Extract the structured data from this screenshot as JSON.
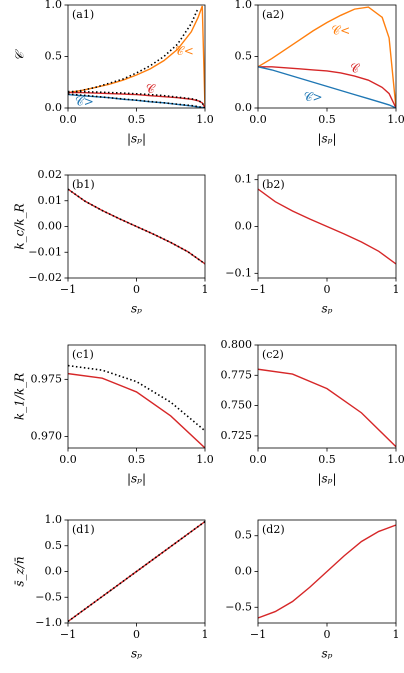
{
  "chart_data": [
    {
      "type": "line",
      "panel": "(a1)",
      "ylabel": "𝒞",
      "xlabel": "|sₚ|",
      "x": [
        0,
        0.1,
        0.2,
        0.3,
        0.4,
        0.5,
        0.6,
        0.7,
        0.8,
        0.9,
        0.95,
        0.98,
        1
      ],
      "xlim": [
        0,
        1
      ],
      "xticks": [
        {
          "value": 0,
          "label": "0.0"
        },
        {
          "value": 0.5,
          "label": "0.5"
        },
        {
          "value": 1,
          "label": "1.0"
        }
      ],
      "ylim": [
        0,
        1
      ],
      "yticks": [
        {
          "value": 0,
          "label": "0.0"
        },
        {
          "value": 0.5,
          "label": "0.5"
        },
        {
          "value": 1,
          "label": "1.0"
        }
      ],
      "series": [
        {
          "color": "#ff7f0e",
          "style": "solid",
          "values": [
            0.15,
            0.17,
            0.2,
            0.23,
            0.27,
            0.32,
            0.38,
            0.46,
            0.57,
            0.74,
            0.88,
            0.99,
            0
          ]
        },
        {
          "color": "#d62728",
          "style": "solid",
          "values": [
            0.15,
            0.15,
            0.145,
            0.14,
            0.135,
            0.13,
            0.12,
            0.11,
            0.1,
            0.085,
            0.07,
            0.05,
            0
          ]
        },
        {
          "color": "#1f77b4",
          "style": "solid",
          "values": [
            0.13,
            0.12,
            0.11,
            0.1,
            0.085,
            0.075,
            0.06,
            0.05,
            0.035,
            0.02,
            0.01,
            0.005,
            0
          ]
        },
        {
          "color": "#000000",
          "style": "dotted",
          "values": [
            0.15,
            0.17,
            0.2,
            0.24,
            0.28,
            0.34,
            0.41,
            0.5,
            0.62,
            0.82,
            0.97,
            null,
            null
          ]
        },
        {
          "color": "#000000",
          "style": "dotted",
          "values": [
            0.16,
            0.158,
            0.155,
            0.15,
            0.145,
            0.138,
            0.13,
            0.12,
            0.105,
            0.09,
            0.075,
            0.05,
            0
          ]
        },
        {
          "color": "#000000",
          "style": "dotted",
          "values": [
            0.135,
            0.125,
            0.113,
            0.1,
            0.088,
            0.076,
            0.063,
            0.05,
            0.037,
            0.024,
            0.013,
            0.006,
            0
          ]
        }
      ],
      "annotations": [
        {
          "text": "𝒞<",
          "color": "#ff7f0e"
        },
        {
          "text": "𝒞",
          "color": "#d62728"
        },
        {
          "text": "𝒞>",
          "color": "#1f77b4"
        }
      ]
    },
    {
      "type": "line",
      "panel": "(a2)",
      "xlabel": "|sₚ|",
      "x": [
        0,
        0.1,
        0.2,
        0.3,
        0.4,
        0.5,
        0.6,
        0.7,
        0.8,
        0.9,
        0.95,
        1
      ],
      "xlim": [
        0,
        1
      ],
      "xticks": [
        {
          "value": 0,
          "label": "0.0"
        },
        {
          "value": 0.5,
          "label": "0.5"
        },
        {
          "value": 1,
          "label": "1.0"
        }
      ],
      "ylim": [
        0,
        1
      ],
      "yticks": [
        {
          "value": 0,
          "label": "0.0"
        },
        {
          "value": 0.5,
          "label": "0.5"
        },
        {
          "value": 1,
          "label": "1.0"
        }
      ],
      "series": [
        {
          "color": "#ff7f0e",
          "style": "solid",
          "values": [
            0.4,
            0.48,
            0.57,
            0.66,
            0.75,
            0.83,
            0.9,
            0.96,
            0.98,
            0.88,
            0.68,
            0
          ]
        },
        {
          "color": "#d62728",
          "style": "solid",
          "values": [
            0.4,
            0.4,
            0.39,
            0.38,
            0.37,
            0.36,
            0.34,
            0.31,
            0.27,
            0.2,
            0.14,
            0
          ]
        },
        {
          "color": "#1f77b4",
          "style": "solid",
          "values": [
            0.4,
            0.37,
            0.33,
            0.29,
            0.25,
            0.21,
            0.17,
            0.13,
            0.09,
            0.05,
            0.03,
            0
          ]
        }
      ],
      "annotations": [
        {
          "text": "𝒞<",
          "color": "#ff7f0e"
        },
        {
          "text": "𝒞",
          "color": "#d62728"
        },
        {
          "text": "𝒞>",
          "color": "#1f77b4"
        }
      ]
    },
    {
      "type": "line",
      "panel": "(b1)",
      "ylabel": "k_c/k_R",
      "xlabel": "sₚ",
      "x": [
        -1,
        -0.75,
        -0.5,
        -0.25,
        0,
        0.25,
        0.5,
        0.75,
        1
      ],
      "xlim": [
        -1,
        1
      ],
      "xticks": [
        {
          "value": -1,
          "label": "−1"
        },
        0,
        1
      ],
      "ylim": [
        -0.02,
        0.02
      ],
      "yticks": [
        {
          "value": -0.02,
          "label": "−0.02"
        },
        {
          "value": -0.01,
          "label": "−0.01"
        },
        {
          "value": 0,
          "label": "0.00"
        },
        0.01,
        0.02
      ],
      "series": [
        {
          "color": "#d62728",
          "style": "solid",
          "values": [
            0.0145,
            0.0098,
            0.0062,
            0.003,
            0,
            -0.003,
            -0.0062,
            -0.0098,
            -0.0145
          ]
        },
        {
          "color": "#000000",
          "style": "dotted",
          "values": [
            0.0145,
            0.0098,
            0.0062,
            0.003,
            0,
            -0.003,
            -0.0062,
            -0.0098,
            -0.0145
          ]
        }
      ]
    },
    {
      "type": "line",
      "panel": "(b2)",
      "xlabel": "sₚ",
      "x": [
        -1,
        -0.75,
        -0.5,
        -0.25,
        0,
        0.25,
        0.5,
        0.75,
        1
      ],
      "xlim": [
        -1,
        1
      ],
      "xticks": [
        {
          "value": -1,
          "label": "−1"
        },
        0,
        1
      ],
      "ylim": [
        -0.11,
        0.11
      ],
      "yticks": [
        {
          "value": -0.1,
          "label": "−0.1"
        },
        {
          "value": 0,
          "label": "0.0"
        },
        0.1
      ],
      "series": [
        {
          "color": "#d62728",
          "style": "solid",
          "values": [
            0.08,
            0.053,
            0.033,
            0.016,
            0,
            -0.016,
            -0.033,
            -0.053,
            -0.08
          ]
        }
      ]
    },
    {
      "type": "line",
      "panel": "(c1)",
      "ylabel": "k_1/k_R",
      "xlabel": "|sₚ|",
      "x": [
        0,
        0.25,
        0.5,
        0.75,
        1
      ],
      "xlim": [
        0,
        1
      ],
      "xticks": [
        {
          "value": 0,
          "label": "0.0"
        },
        {
          "value": 0.5,
          "label": "0.5"
        },
        {
          "value": 1,
          "label": "1.0"
        }
      ],
      "ylim": [
        0.969,
        0.978
      ],
      "yticks": [
        {
          "value": 0.97,
          "label": "0.970"
        },
        0.975
      ],
      "series": [
        {
          "color": "#d62728",
          "style": "solid",
          "values": [
            0.9755,
            0.9751,
            0.9739,
            0.9718,
            0.969
          ]
        },
        {
          "color": "#000000",
          "style": "dotted",
          "values": [
            0.9762,
            0.9758,
            0.9748,
            0.973,
            0.9705
          ]
        }
      ]
    },
    {
      "type": "line",
      "panel": "(c2)",
      "xlabel": "|sₚ|",
      "x": [
        0,
        0.25,
        0.5,
        0.75,
        1
      ],
      "xlim": [
        0,
        1
      ],
      "xticks": [
        {
          "value": 0,
          "label": "0.0"
        },
        {
          "value": 0.5,
          "label": "0.5"
        },
        {
          "value": 1,
          "label": "1.0"
        }
      ],
      "ylim": [
        0.715,
        0.8
      ],
      "yticks": [
        0.725,
        {
          "value": 0.75,
          "label": "0.750"
        },
        0.775,
        {
          "value": 0.8,
          "label": "0.800"
        }
      ],
      "series": [
        {
          "color": "#d62728",
          "style": "solid",
          "values": [
            0.78,
            0.776,
            0.764,
            0.744,
            0.716
          ]
        }
      ]
    },
    {
      "type": "line",
      "panel": "(d1)",
      "ylabel": "s̄_z/n̄",
      "xlabel": "sₚ",
      "x": [
        -1,
        0,
        1
      ],
      "xlim": [
        -1,
        1
      ],
      "xticks": [
        {
          "value": -1,
          "label": "−1"
        },
        0,
        1
      ],
      "ylim": [
        -1,
        1
      ],
      "yticks": [
        {
          "value": -1,
          "label": "−1.0"
        },
        {
          "value": -0.5,
          "label": "−0.5"
        },
        {
          "value": 0,
          "label": "0.0"
        },
        0.5,
        {
          "value": 1,
          "label": "1.0"
        }
      ],
      "series": [
        {
          "color": "#d62728",
          "style": "solid",
          "values": [
            -0.97,
            0,
            0.97
          ]
        },
        {
          "color": "#000000",
          "style": "dotted",
          "values": [
            -0.97,
            0,
            0.97
          ]
        }
      ]
    },
    {
      "type": "line",
      "panel": "(d2)",
      "xlabel": "sₚ",
      "x": [
        -1,
        -0.75,
        -0.5,
        -0.25,
        0,
        0.25,
        0.5,
        0.75,
        1
      ],
      "xlim": [
        -1,
        1
      ],
      "xticks": [
        {
          "value": -1,
          "label": "−1"
        },
        0,
        1
      ],
      "ylim": [
        -0.72,
        0.72
      ],
      "yticks": [
        {
          "value": -0.5,
          "label": "−0.5"
        },
        {
          "value": 0,
          "label": "0.0"
        },
        0.5
      ],
      "series": [
        {
          "color": "#d62728",
          "style": "solid",
          "values": [
            -0.65,
            -0.56,
            -0.42,
            -0.22,
            0,
            0.22,
            0.42,
            0.56,
            0.65
          ]
        }
      ]
    }
  ]
}
